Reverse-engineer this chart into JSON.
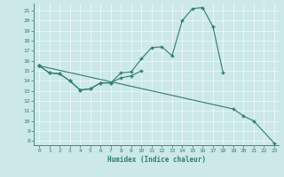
{
  "bg_color": "#cce8e8",
  "line_color": "#2e7d6e",
  "xlabel": "Humidex (Indice chaleur)",
  "xlim": [
    -0.5,
    23.4
  ],
  "ylim": [
    7.6,
    21.7
  ],
  "xticks": [
    0,
    1,
    2,
    3,
    4,
    5,
    6,
    7,
    8,
    9,
    10,
    11,
    12,
    13,
    14,
    15,
    16,
    17,
    18,
    19,
    20,
    21,
    22,
    23
  ],
  "yticks": [
    8,
    9,
    10,
    11,
    12,
    13,
    14,
    15,
    16,
    17,
    18,
    19,
    20,
    21
  ],
  "curve1_x": [
    0,
    1,
    2,
    3,
    4,
    5,
    6,
    7,
    8,
    9,
    10,
    11,
    12,
    13,
    14,
    15,
    16,
    17,
    18
  ],
  "curve1_y": [
    15.5,
    14.8,
    14.7,
    14.0,
    13.1,
    13.2,
    13.8,
    13.8,
    14.8,
    14.9,
    16.2,
    17.3,
    17.4,
    16.5,
    20.0,
    21.2,
    21.3,
    19.4,
    14.8
  ],
  "curve2_x": [
    0,
    1,
    2,
    3,
    4,
    5,
    6,
    7,
    8,
    9,
    10
  ],
  "curve2_y": [
    15.5,
    14.8,
    14.7,
    14.0,
    13.1,
    13.2,
    13.8,
    13.8,
    14.3,
    14.5,
    15.0
  ],
  "curve3_x": [
    0,
    19,
    20,
    21,
    23
  ],
  "curve3_y": [
    15.5,
    11.2,
    10.5,
    10.0,
    7.8
  ]
}
